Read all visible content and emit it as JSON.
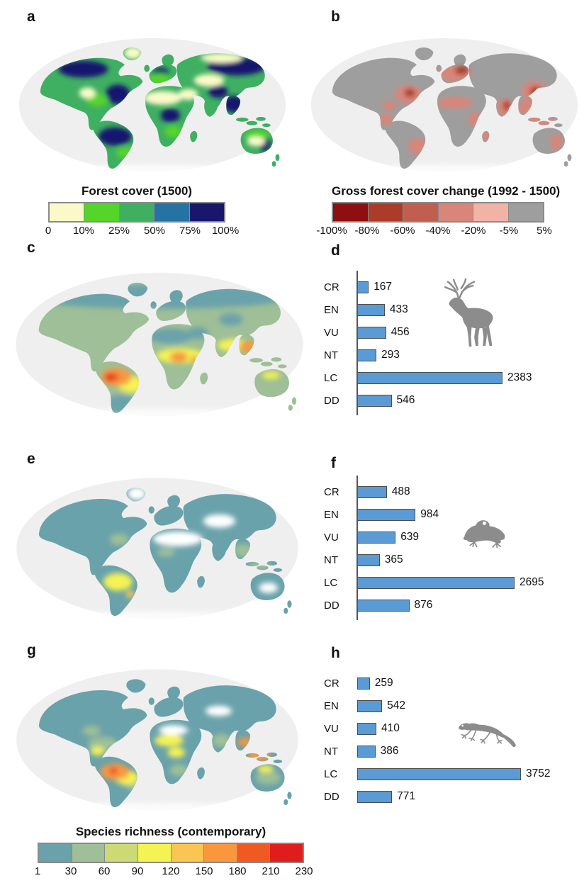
{
  "panels": {
    "a": {
      "label": "a"
    },
    "b": {
      "label": "b"
    },
    "c": {
      "label": "c"
    },
    "d": {
      "label": "d"
    },
    "e": {
      "label": "e"
    },
    "f": {
      "label": "f"
    },
    "g": {
      "label": "g"
    },
    "h": {
      "label": "h"
    }
  },
  "legends": {
    "forest_cover": {
      "title": "Forest cover (1500)",
      "ticks": [
        "0",
        "10%",
        "25%",
        "50%",
        "75%",
        "100%"
      ],
      "colors": [
        "#FAFAC8",
        "#55D42A",
        "#3FAF62",
        "#2473A2",
        "#17176E"
      ]
    },
    "forest_change": {
      "title": "Gross forest cover change (1992 - 1500)",
      "ticks": [
        "-100%",
        "-80%",
        "-60%",
        "-40%",
        "-20%",
        "-5%",
        "5%"
      ],
      "colors": [
        "#8E0F0F",
        "#AA3C28",
        "#C05F50",
        "#D98579",
        "#F2B3A6",
        "#9E9E9E"
      ]
    },
    "species_richness": {
      "title": "Species richness (contemporary)",
      "ticks": [
        "1",
        "30",
        "60",
        "90",
        "120",
        "150",
        "180",
        "210",
        "230"
      ],
      "colors": [
        "#6AA2AB",
        "#9EBF97",
        "#CCD975",
        "#F5F353",
        "#F9C553",
        "#F9973F",
        "#EE5A22",
        "#E01D1D"
      ]
    }
  },
  "maps": [
    {
      "panel": "a",
      "legend": "forest_cover"
    },
    {
      "panel": "b",
      "legend": "forest_change"
    },
    {
      "panel": "c",
      "legend": "species_richness"
    },
    {
      "panel": "e",
      "legend": "species_richness"
    },
    {
      "panel": "g",
      "legend": "species_richness"
    }
  ],
  "chart_data": [
    {
      "panel": "d",
      "type": "bar",
      "orientation": "horizontal",
      "icon": "deer-icon",
      "categories": [
        "CR",
        "EN",
        "VU",
        "NT",
        "LC",
        "DD"
      ],
      "values": [
        167,
        433,
        456,
        293,
        2383,
        546
      ],
      "axis_line": true,
      "bar_color": "#5B9BD5"
    },
    {
      "panel": "f",
      "type": "bar",
      "orientation": "horizontal",
      "icon": "frog-icon",
      "categories": [
        "CR",
        "EN",
        "VU",
        "NT",
        "LC",
        "DD"
      ],
      "values": [
        488,
        984,
        639,
        365,
        2695,
        876
      ],
      "axis_line": true,
      "bar_color": "#5B9BD5"
    },
    {
      "panel": "h",
      "type": "bar",
      "orientation": "horizontal",
      "icon": "lizard-icon",
      "categories": [
        "CR",
        "EN",
        "VU",
        "NT",
        "LC",
        "DD"
      ],
      "values": [
        259,
        542,
        410,
        386,
        3752,
        771
      ],
      "axis_line": false,
      "bar_color": "#5B9BD5"
    }
  ],
  "icon_color": "#8C8C8C",
  "ocean_color": "#EFEFEF"
}
